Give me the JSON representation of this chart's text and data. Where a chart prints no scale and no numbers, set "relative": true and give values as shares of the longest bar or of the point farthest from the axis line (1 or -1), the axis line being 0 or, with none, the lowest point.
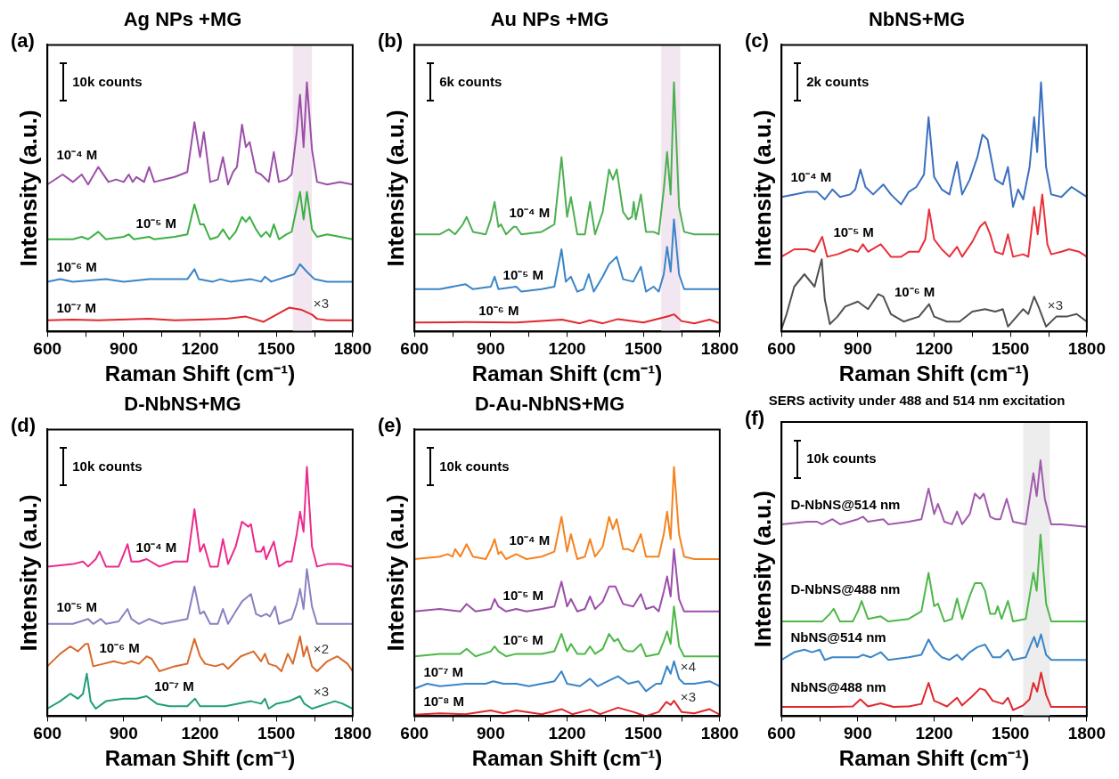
{
  "chart_data": [
    {
      "type": "line",
      "title": "Ag NPs +MG",
      "xlabel": "Raman Shift (cm⁻¹)",
      "ylabel": "Intensity (a.u.)",
      "relative": true,
      "xlim": [
        600,
        1800
      ],
      "xticks": [
        600,
        {
          "value": 750,
          "label": null
        },
        900,
        {
          "value": 1050,
          "label": null
        },
        1200,
        {
          "value": 1350,
          "label": null
        },
        1500,
        {
          "value": 1650,
          "label": null
        },
        1800
      ],
      "bands": [
        {
          "axis": "x",
          "from": 1565,
          "to": 1640,
          "color": "#f2e6f0"
        }
      ],
      "annotations": [
        "(a)",
        "10k counts",
        "×3"
      ],
      "series": [
        {
          "name": "10⁻⁴ M",
          "color": "#9b4fa8",
          "x": [
            600,
            660,
            700,
            735,
            760,
            800,
            840,
            870,
            900,
            920,
            935,
            950,
            980,
            1000,
            1020,
            1100,
            1150,
            1178,
            1200,
            1215,
            1240,
            1270,
            1290,
            1310,
            1330,
            1345,
            1365,
            1380,
            1395,
            1420,
            1440,
            1470,
            1490,
            1510,
            1540,
            1560,
            1580,
            1593,
            1607,
            1620,
            1640,
            1660,
            1700,
            1750,
            1800
          ],
          "values": [
            0.59,
            0.63,
            0.6,
            0.63,
            0.59,
            0.66,
            0.6,
            0.61,
            0.6,
            0.63,
            0.6,
            0.62,
            0.6,
            0.66,
            0.6,
            0.62,
            0.64,
            0.84,
            0.7,
            0.8,
            0.6,
            0.61,
            0.7,
            0.59,
            0.64,
            0.66,
            0.83,
            0.74,
            0.76,
            0.64,
            0.63,
            0.6,
            0.72,
            0.6,
            0.61,
            0.63,
            0.8,
            0.95,
            0.74,
            1.0,
            0.73,
            0.6,
            0.59,
            0.6,
            0.59
          ]
        },
        {
          "name": "10⁻⁵ M",
          "color": "#3cb043",
          "x": [
            600,
            700,
            735,
            760,
            800,
            830,
            900,
            920,
            940,
            1000,
            1020,
            1100,
            1150,
            1178,
            1200,
            1215,
            1240,
            1270,
            1290,
            1315,
            1340,
            1365,
            1380,
            1395,
            1420,
            1440,
            1460,
            1475,
            1490,
            1510,
            1540,
            1560,
            1593,
            1607,
            1620,
            1640,
            1660,
            1700,
            1750,
            1800
          ],
          "values": [
            0.37,
            0.37,
            0.38,
            0.37,
            0.4,
            0.37,
            0.38,
            0.39,
            0.37,
            0.38,
            0.37,
            0.38,
            0.39,
            0.51,
            0.43,
            0.43,
            0.37,
            0.38,
            0.41,
            0.37,
            0.4,
            0.46,
            0.44,
            0.46,
            0.41,
            0.38,
            0.4,
            0.38,
            0.43,
            0.37,
            0.39,
            0.4,
            0.56,
            0.45,
            0.56,
            0.41,
            0.38,
            0.39,
            0.38,
            0.37
          ]
        },
        {
          "name": "10⁻⁶ M",
          "color": "#3a85c8",
          "x": [
            600,
            650,
            700,
            830,
            900,
            1000,
            1150,
            1178,
            1195,
            1250,
            1280,
            1320,
            1400,
            1440,
            1455,
            1480,
            1540,
            1570,
            1593,
            1620,
            1650,
            1700,
            1800
          ],
          "values": [
            0.2,
            0.21,
            0.2,
            0.21,
            0.2,
            0.21,
            0.21,
            0.25,
            0.21,
            0.2,
            0.21,
            0.2,
            0.21,
            0.2,
            0.22,
            0.2,
            0.22,
            0.23,
            0.27,
            0.24,
            0.21,
            0.2,
            0.2
          ]
        },
        {
          "name": "10⁻⁷ M",
          "color": "#e0282e",
          "x": [
            600,
            700,
            800,
            1000,
            1100,
            1200,
            1300,
            1380,
            1450,
            1480,
            1550,
            1600,
            1640,
            1660,
            1700,
            1800
          ],
          "values": [
            0.045,
            0.048,
            0.045,
            0.051,
            0.045,
            0.048,
            0.051,
            0.06,
            0.039,
            0.056,
            0.096,
            0.087,
            0.068,
            0.051,
            0.045,
            0.045
          ]
        }
      ]
    },
    {
      "type": "line",
      "title": "Au NPs +MG",
      "xlabel": "Raman Shift (cm⁻¹)",
      "ylabel": "Intensity (a.u.)",
      "relative": true,
      "xlim": [
        600,
        1800
      ],
      "xticks": [
        600,
        {
          "value": 750,
          "label": null
        },
        900,
        {
          "value": 1050,
          "label": null
        },
        1200,
        {
          "value": 1350,
          "label": null
        },
        1500,
        {
          "value": 1650,
          "label": null
        },
        1800
      ],
      "bands": [
        {
          "axis": "x",
          "from": 1570,
          "to": 1645,
          "color": "#f2e6f0"
        }
      ],
      "annotations": [
        "(b)",
        "6k counts"
      ],
      "series": [
        {
          "name": "10⁻⁴ M",
          "color": "#4caf50",
          "x": [
            600,
            700,
            735,
            760,
            790,
            805,
            830,
            880,
            900,
            915,
            930,
            940,
            960,
            990,
            1000,
            1020,
            1100,
            1150,
            1178,
            1200,
            1215,
            1240,
            1270,
            1290,
            1310,
            1340,
            1365,
            1380,
            1395,
            1420,
            1440,
            1455,
            1462,
            1470,
            1490,
            1510,
            1540,
            1560,
            1580,
            1593,
            1607,
            1620,
            1640,
            1660,
            1700,
            1800
          ],
          "values": [
            0.39,
            0.39,
            0.41,
            0.39,
            0.43,
            0.46,
            0.4,
            0.39,
            0.45,
            0.52,
            0.42,
            0.43,
            0.39,
            0.42,
            0.42,
            0.39,
            0.4,
            0.43,
            0.7,
            0.46,
            0.54,
            0.39,
            0.39,
            0.52,
            0.39,
            0.48,
            0.65,
            0.61,
            0.65,
            0.48,
            0.45,
            0.46,
            0.52,
            0.45,
            0.55,
            0.4,
            0.4,
            0.39,
            0.57,
            0.72,
            0.55,
            1.0,
            0.5,
            0.4,
            0.39,
            0.39
          ]
        },
        {
          "name": "10⁻⁵ M",
          "color": "#3a85c8",
          "x": [
            600,
            700,
            800,
            830,
            900,
            915,
            930,
            1000,
            1020,
            1100,
            1150,
            1178,
            1195,
            1215,
            1240,
            1265,
            1285,
            1305,
            1340,
            1365,
            1395,
            1420,
            1460,
            1490,
            1510,
            1540,
            1560,
            1580,
            1593,
            1607,
            1620,
            1640,
            1660,
            1800
          ],
          "values": [
            0.17,
            0.17,
            0.19,
            0.17,
            0.18,
            0.22,
            0.17,
            0.18,
            0.16,
            0.17,
            0.18,
            0.33,
            0.2,
            0.22,
            0.16,
            0.17,
            0.23,
            0.16,
            0.22,
            0.27,
            0.3,
            0.21,
            0.2,
            0.26,
            0.16,
            0.18,
            0.16,
            0.23,
            0.34,
            0.24,
            0.45,
            0.23,
            0.17,
            0.17
          ]
        },
        {
          "name": "10⁻⁶ M",
          "color": "#e0282e",
          "x": [
            600,
            800,
            1000,
            1180,
            1250,
            1290,
            1340,
            1400,
            1500,
            1580,
            1600,
            1620,
            1650,
            1700,
            1760,
            1800
          ],
          "values": [
            0.036,
            0.038,
            0.036,
            0.048,
            0.033,
            0.045,
            0.033,
            0.05,
            0.036,
            0.057,
            0.062,
            0.069,
            0.042,
            0.033,
            0.048,
            0.033
          ]
        }
      ]
    },
    {
      "type": "line",
      "title": "NbNS+MG",
      "xlabel": "Raman Shift (cm⁻¹)",
      "ylabel": "Intensity (a.u.)",
      "relative": true,
      "xlim": [
        600,
        1800
      ],
      "xticks": [
        600,
        {
          "value": 750,
          "label": null
        },
        900,
        {
          "value": 1050,
          "label": null
        },
        1200,
        {
          "value": 1350,
          "label": null
        },
        1500,
        {
          "value": 1650,
          "label": null
        },
        1800
      ],
      "annotations": [
        "(c)",
        "2k counts",
        "×3"
      ],
      "series": [
        {
          "name": "10⁻⁴ M",
          "color": "#3a6fbf",
          "x": [
            600,
            650,
            700,
            740,
            770,
            800,
            830,
            870,
            890,
            910,
            930,
            960,
            1000,
            1030,
            1070,
            1100,
            1130,
            1160,
            1178,
            1200,
            1230,
            1260,
            1290,
            1310,
            1340,
            1370,
            1390,
            1410,
            1440,
            1470,
            1490,
            1510,
            1530,
            1550,
            1575,
            1593,
            1605,
            1620,
            1640,
            1660,
            1700,
            1740,
            1770,
            1800
          ],
          "values": [
            0.54,
            0.55,
            0.56,
            0.56,
            0.53,
            0.57,
            0.54,
            0.55,
            0.57,
            0.65,
            0.58,
            0.55,
            0.59,
            0.55,
            0.51,
            0.56,
            0.58,
            0.63,
            0.86,
            0.62,
            0.57,
            0.55,
            0.68,
            0.55,
            0.61,
            0.7,
            0.79,
            0.77,
            0.61,
            0.59,
            0.66,
            0.5,
            0.57,
            0.53,
            0.66,
            0.86,
            0.72,
            1.0,
            0.66,
            0.55,
            0.54,
            0.58,
            0.56,
            0.54
          ]
        },
        {
          "name": "10⁻⁵ M",
          "color": "#e8303a",
          "x": [
            600,
            650,
            700,
            730,
            760,
            780,
            820,
            870,
            900,
            920,
            940,
            990,
            1030,
            1070,
            1100,
            1140,
            1165,
            1180,
            1200,
            1230,
            1260,
            1290,
            1310,
            1350,
            1380,
            1400,
            1420,
            1440,
            1470,
            1490,
            1510,
            1550,
            1570,
            1593,
            1607,
            1625,
            1645,
            1660,
            1700,
            1730,
            1770,
            1800
          ],
          "values": [
            0.3,
            0.33,
            0.33,
            0.32,
            0.38,
            0.3,
            0.31,
            0.33,
            0.32,
            0.35,
            0.32,
            0.35,
            0.3,
            0.3,
            0.32,
            0.32,
            0.37,
            0.49,
            0.37,
            0.33,
            0.3,
            0.34,
            0.3,
            0.36,
            0.42,
            0.44,
            0.39,
            0.32,
            0.31,
            0.39,
            0.3,
            0.31,
            0.3,
            0.5,
            0.39,
            0.55,
            0.35,
            0.31,
            0.32,
            0.33,
            0.32,
            0.3
          ]
        },
        {
          "name": "10⁻⁶ M",
          "color": "#505050",
          "x": [
            600,
            620,
            650,
            690,
            730,
            745,
            758,
            770,
            790,
            820,
            850,
            900,
            940,
            980,
            1000,
            1030,
            1080,
            1140,
            1180,
            1200,
            1250,
            1300,
            1350,
            1400,
            1440,
            1470,
            1490,
            1550,
            1570,
            1593,
            1610,
            1640,
            1680,
            1720,
            1760,
            1800
          ],
          "values": [
            0.01,
            0.07,
            0.18,
            0.23,
            0.18,
            0.24,
            0.29,
            0.13,
            0.03,
            0.06,
            0.1,
            0.12,
            0.09,
            0.15,
            0.14,
            0.07,
            0.04,
            0.06,
            0.11,
            0.06,
            0.04,
            0.04,
            0.08,
            0.09,
            0.08,
            0.09,
            0.02,
            0.09,
            0.07,
            0.14,
            0.1,
            0.02,
            0.06,
            0.06,
            0.07,
            0.04
          ]
        }
      ]
    },
    {
      "type": "line",
      "title": "D-NbNS+MG",
      "xlabel": "Raman Shift (cm⁻¹)",
      "ylabel": "Intensity (a.u.)",
      "relative": true,
      "xlim": [
        600,
        1800
      ],
      "xticks": [
        600,
        {
          "value": 750,
          "label": null
        },
        900,
        {
          "value": 1050,
          "label": null
        },
        1200,
        {
          "value": 1350,
          "label": null
        },
        1500,
        {
          "value": 1650,
          "label": null
        },
        1800
      ],
      "annotations": [
        "(d)",
        "10k counts",
        "×2",
        "×3"
      ],
      "series": [
        {
          "name": "10⁻⁴ M",
          "color": "#ec2a8c",
          "x": [
            600,
            700,
            740,
            760,
            790,
            805,
            830,
            880,
            900,
            915,
            930,
            960,
            990,
            1040,
            1100,
            1150,
            1178,
            1200,
            1215,
            1240,
            1270,
            1290,
            1310,
            1340,
            1365,
            1390,
            1400,
            1420,
            1440,
            1450,
            1460,
            1490,
            1510,
            1540,
            1560,
            1580,
            1593,
            1607,
            1620,
            1640,
            1660,
            1700,
            1750,
            1800
          ],
          "values": [
            0.6,
            0.61,
            0.62,
            0.6,
            0.63,
            0.66,
            0.6,
            0.6,
            0.65,
            0.69,
            0.62,
            0.62,
            0.63,
            0.6,
            0.62,
            0.62,
            0.83,
            0.66,
            0.69,
            0.6,
            0.6,
            0.71,
            0.61,
            0.68,
            0.78,
            0.76,
            0.77,
            0.66,
            0.66,
            0.68,
            0.63,
            0.7,
            0.6,
            0.62,
            0.62,
            0.73,
            0.82,
            0.74,
            1.0,
            0.68,
            0.6,
            0.61,
            0.61,
            0.6
          ]
        },
        {
          "name": "10⁻⁵ M",
          "color": "#8a80c0",
          "x": [
            600,
            700,
            760,
            780,
            810,
            830,
            880,
            915,
            930,
            960,
            1000,
            1050,
            1100,
            1150,
            1178,
            1200,
            1215,
            1240,
            1270,
            1290,
            1310,
            1340,
            1365,
            1400,
            1420,
            1440,
            1460,
            1475,
            1495,
            1510,
            1560,
            1580,
            1593,
            1607,
            1620,
            1640,
            1660,
            1700,
            1800
          ],
          "values": [
            0.37,
            0.37,
            0.39,
            0.37,
            0.39,
            0.37,
            0.38,
            0.43,
            0.39,
            0.37,
            0.39,
            0.37,
            0.38,
            0.39,
            0.52,
            0.41,
            0.42,
            0.37,
            0.37,
            0.43,
            0.37,
            0.42,
            0.46,
            0.49,
            0.41,
            0.4,
            0.41,
            0.4,
            0.44,
            0.37,
            0.39,
            0.45,
            0.51,
            0.43,
            0.59,
            0.44,
            0.37,
            0.37,
            0.37
          ]
        },
        {
          "name": "10⁻⁶ M",
          "color": "#d9692a",
          "x": [
            600,
            650,
            690,
            720,
            750,
            760,
            780,
            820,
            860,
            900,
            930,
            960,
            990,
            1010,
            1040,
            1100,
            1150,
            1178,
            1200,
            1220,
            1260,
            1290,
            1310,
            1360,
            1410,
            1440,
            1455,
            1470,
            1500,
            1520,
            1545,
            1565,
            1593,
            1607,
            1620,
            1640,
            1660,
            1700,
            1740,
            1780,
            1800
          ],
          "values": [
            0.2,
            0.25,
            0.28,
            0.26,
            0.29,
            0.29,
            0.2,
            0.21,
            0.22,
            0.21,
            0.22,
            0.21,
            0.24,
            0.23,
            0.18,
            0.2,
            0.21,
            0.31,
            0.24,
            0.21,
            0.2,
            0.21,
            0.19,
            0.24,
            0.26,
            0.22,
            0.25,
            0.21,
            0.2,
            0.18,
            0.25,
            0.21,
            0.32,
            0.24,
            0.28,
            0.2,
            0.18,
            0.22,
            0.24,
            0.21,
            0.18
          ]
        },
        {
          "name": "10⁻⁷ M",
          "color": "#1f9e7a",
          "x": [
            600,
            650,
            690,
            720,
            740,
            755,
            770,
            790,
            830,
            900,
            950,
            990,
            1030,
            1080,
            1150,
            1180,
            1200,
            1300,
            1400,
            1440,
            1455,
            1470,
            1500,
            1550,
            1593,
            1610,
            1640,
            1700,
            1730,
            1760,
            1800
          ],
          "values": [
            0.03,
            0.06,
            0.09,
            0.07,
            0.09,
            0.17,
            0.06,
            0.03,
            0.06,
            0.07,
            0.07,
            0.08,
            0.05,
            0.04,
            0.04,
            0.07,
            0.04,
            0.04,
            0.06,
            0.05,
            0.07,
            0.03,
            0.05,
            0.06,
            0.08,
            0.05,
            0.03,
            0.05,
            0.06,
            0.05,
            0.03
          ]
        }
      ]
    },
    {
      "type": "line",
      "title": "D-Au-NbNS+MG",
      "xlabel": "Raman Shift (cm⁻¹)",
      "ylabel": "Intensity (a.u.)",
      "relative": true,
      "xlim": [
        600,
        1800
      ],
      "xticks": [
        600,
        {
          "value": 750,
          "label": null
        },
        900,
        {
          "value": 1050,
          "label": null
        },
        1200,
        {
          "value": 1350,
          "label": null
        },
        1500,
        {
          "value": 1650,
          "label": null
        },
        1800
      ],
      "annotations": [
        "(e)",
        "10k counts",
        "×4",
        "×3"
      ],
      "series": [
        {
          "name": "10⁻⁴ M",
          "color": "#f5821f",
          "x": [
            600,
            700,
            730,
            750,
            760,
            780,
            805,
            830,
            880,
            900,
            915,
            930,
            940,
            960,
            1000,
            1040,
            1100,
            1150,
            1178,
            1200,
            1215,
            1240,
            1270,
            1290,
            1310,
            1340,
            1365,
            1380,
            1395,
            1420,
            1440,
            1460,
            1490,
            1510,
            1560,
            1580,
            1593,
            1607,
            1620,
            1640,
            1660,
            1700,
            1800
          ],
          "values": [
            0.63,
            0.64,
            0.65,
            0.64,
            0.67,
            0.64,
            0.69,
            0.64,
            0.63,
            0.67,
            0.71,
            0.65,
            0.66,
            0.63,
            0.65,
            0.63,
            0.64,
            0.66,
            0.8,
            0.66,
            0.73,
            0.63,
            0.64,
            0.71,
            0.64,
            0.68,
            0.8,
            0.75,
            0.79,
            0.67,
            0.67,
            0.66,
            0.73,
            0.64,
            0.64,
            0.73,
            0.82,
            0.71,
            1.0,
            0.73,
            0.64,
            0.63,
            0.63
          ]
        },
        {
          "name": "10⁻⁵ M",
          "color": "#9b4fa8",
          "x": [
            600,
            700,
            780,
            805,
            840,
            900,
            915,
            930,
            960,
            1000,
            1040,
            1100,
            1150,
            1178,
            1200,
            1215,
            1240,
            1270,
            1290,
            1310,
            1340,
            1365,
            1390,
            1420,
            1460,
            1490,
            1510,
            1540,
            1560,
            1580,
            1593,
            1607,
            1620,
            1640,
            1660,
            1800
          ],
          "values": [
            0.42,
            0.43,
            0.42,
            0.45,
            0.42,
            0.43,
            0.47,
            0.44,
            0.42,
            0.43,
            0.42,
            0.43,
            0.44,
            0.54,
            0.44,
            0.47,
            0.42,
            0.43,
            0.48,
            0.43,
            0.46,
            0.52,
            0.52,
            0.45,
            0.44,
            0.49,
            0.43,
            0.44,
            0.42,
            0.5,
            0.56,
            0.48,
            0.67,
            0.47,
            0.42,
            0.42
          ]
        },
        {
          "name": "10⁻⁶ M",
          "color": "#4cb848",
          "x": [
            600,
            700,
            780,
            805,
            840,
            900,
            915,
            930,
            960,
            1000,
            1100,
            1150,
            1178,
            1200,
            1215,
            1240,
            1270,
            1290,
            1310,
            1340,
            1365,
            1385,
            1400,
            1420,
            1440,
            1460,
            1490,
            1510,
            1560,
            1580,
            1593,
            1607,
            1620,
            1640,
            1660,
            1800
          ],
          "values": [
            0.24,
            0.25,
            0.25,
            0.27,
            0.24,
            0.26,
            0.28,
            0.26,
            0.24,
            0.25,
            0.25,
            0.26,
            0.33,
            0.26,
            0.29,
            0.25,
            0.25,
            0.28,
            0.25,
            0.27,
            0.33,
            0.3,
            0.31,
            0.27,
            0.26,
            0.26,
            0.29,
            0.24,
            0.25,
            0.3,
            0.34,
            0.29,
            0.44,
            0.28,
            0.24,
            0.24
          ]
        },
        {
          "name": "10⁻⁷ M",
          "color": "#3a85c8",
          "x": [
            600,
            650,
            700,
            800,
            880,
            910,
            950,
            1000,
            1050,
            1100,
            1150,
            1178,
            1200,
            1250,
            1290,
            1320,
            1360,
            1400,
            1440,
            1480,
            1510,
            1550,
            1570,
            1593,
            1607,
            1620,
            1640,
            1660,
            1700,
            1760,
            1800
          ],
          "values": [
            0.11,
            0.13,
            0.12,
            0.13,
            0.13,
            0.14,
            0.13,
            0.13,
            0.12,
            0.13,
            0.14,
            0.18,
            0.13,
            0.12,
            0.15,
            0.12,
            0.14,
            0.16,
            0.13,
            0.14,
            0.1,
            0.13,
            0.13,
            0.2,
            0.17,
            0.22,
            0.15,
            0.13,
            0.13,
            0.14,
            0.12
          ]
        },
        {
          "name": "10⁻⁸ M",
          "color": "#e0282e",
          "x": [
            600,
            700,
            800,
            900,
            950,
            1000,
            1100,
            1180,
            1220,
            1290,
            1330,
            1400,
            1460,
            1510,
            1560,
            1590,
            1607,
            1620,
            1650,
            1700,
            1760,
            1800
          ],
          "values": [
            0.006,
            0.011,
            0.008,
            0.023,
            0.011,
            0.023,
            0.008,
            0.028,
            0.008,
            0.026,
            0.008,
            0.034,
            0.017,
            0.0,
            0.017,
            0.057,
            0.045,
            0.062,
            0.017,
            0.011,
            0.028,
            0.006
          ]
        }
      ]
    },
    {
      "type": "line",
      "title": "SERS activity under 488 and 514 nm excitation",
      "xlabel": "Raman Shift (cm⁻¹)",
      "ylabel": "Intensity (a.u.)",
      "relative": true,
      "xlim": [
        600,
        1800
      ],
      "xticks": [
        600,
        {
          "value": 750,
          "label": null
        },
        900,
        {
          "value": 1050,
          "label": null
        },
        1200,
        {
          "value": 1350,
          "label": null
        },
        1500,
        {
          "value": 1650,
          "label": null
        },
        1800
      ],
      "bands": [
        {
          "axis": "x",
          "from": 1550,
          "to": 1655,
          "color": "#ededed"
        }
      ],
      "annotations": [
        "(f)",
        "10k counts"
      ],
      "series": [
        {
          "name": "D-NbNS@514 nm",
          "color": "#a15aae",
          "x": [
            600,
            700,
            740,
            760,
            800,
            830,
            900,
            920,
            940,
            1000,
            1020,
            1100,
            1150,
            1178,
            1200,
            1215,
            1240,
            1270,
            1290,
            1310,
            1340,
            1360,
            1380,
            1395,
            1420,
            1440,
            1460,
            1485,
            1510,
            1560,
            1575,
            1590,
            1603,
            1618,
            1635,
            1660,
            1700,
            1800
          ],
          "values": [
            0.75,
            0.76,
            0.76,
            0.75,
            0.77,
            0.75,
            0.77,
            0.78,
            0.76,
            0.77,
            0.75,
            0.76,
            0.77,
            0.89,
            0.79,
            0.83,
            0.76,
            0.75,
            0.8,
            0.75,
            0.79,
            0.87,
            0.85,
            0.87,
            0.78,
            0.77,
            0.77,
            0.85,
            0.76,
            0.75,
            0.85,
            0.95,
            0.86,
            1.0,
            0.85,
            0.75,
            0.75,
            0.74
          ]
        },
        {
          "name": "D-NbNS@488 nm",
          "color": "#4cb848",
          "x": [
            600,
            700,
            760,
            790,
            805,
            830,
            880,
            900,
            915,
            940,
            990,
            1020,
            1100,
            1150,
            1178,
            1200,
            1215,
            1240,
            1270,
            1290,
            1310,
            1340,
            1360,
            1385,
            1400,
            1420,
            1440,
            1450,
            1465,
            1490,
            1510,
            1560,
            1575,
            1590,
            1603,
            1618,
            1640,
            1660,
            1800
          ],
          "values": [
            0.37,
            0.37,
            0.37,
            0.4,
            0.42,
            0.37,
            0.37,
            0.41,
            0.45,
            0.38,
            0.39,
            0.37,
            0.38,
            0.41,
            0.56,
            0.43,
            0.44,
            0.37,
            0.38,
            0.46,
            0.38,
            0.47,
            0.52,
            0.52,
            0.49,
            0.4,
            0.4,
            0.43,
            0.38,
            0.45,
            0.37,
            0.38,
            0.47,
            0.56,
            0.49,
            0.71,
            0.44,
            0.37,
            0.37
          ]
        },
        {
          "name": "NbNS@514 nm",
          "color": "#3a85c8",
          "x": [
            600,
            650,
            690,
            720,
            750,
            770,
            800,
            900,
            920,
            950,
            990,
            1020,
            1100,
            1150,
            1178,
            1200,
            1230,
            1260,
            1290,
            1310,
            1340,
            1370,
            1400,
            1430,
            1460,
            1490,
            1510,
            1560,
            1580,
            1593,
            1605,
            1620,
            1640,
            1660,
            1800
          ],
          "values": [
            0.22,
            0.25,
            0.26,
            0.25,
            0.26,
            0.22,
            0.23,
            0.23,
            0.24,
            0.23,
            0.25,
            0.22,
            0.23,
            0.24,
            0.3,
            0.26,
            0.23,
            0.22,
            0.24,
            0.22,
            0.25,
            0.27,
            0.28,
            0.23,
            0.23,
            0.26,
            0.22,
            0.23,
            0.28,
            0.31,
            0.27,
            0.32,
            0.24,
            0.22,
            0.22
          ]
        },
        {
          "name": "NbNS@488 nm",
          "color": "#e0282e",
          "x": [
            600,
            700,
            800,
            880,
            910,
            940,
            990,
            1040,
            1100,
            1150,
            1178,
            1200,
            1215,
            1250,
            1290,
            1310,
            1350,
            1380,
            1400,
            1430,
            1470,
            1490,
            1510,
            1550,
            1575,
            1590,
            1605,
            1620,
            1640,
            1660,
            1800
          ],
          "values": [
            0.036,
            0.036,
            0.036,
            0.038,
            0.066,
            0.038,
            0.05,
            0.036,
            0.038,
            0.048,
            0.13,
            0.06,
            0.054,
            0.038,
            0.072,
            0.042,
            0.078,
            0.108,
            0.102,
            0.06,
            0.048,
            0.072,
            0.024,
            0.042,
            0.066,
            0.13,
            0.096,
            0.17,
            0.084,
            0.036,
            0.036
          ]
        }
      ]
    }
  ]
}
